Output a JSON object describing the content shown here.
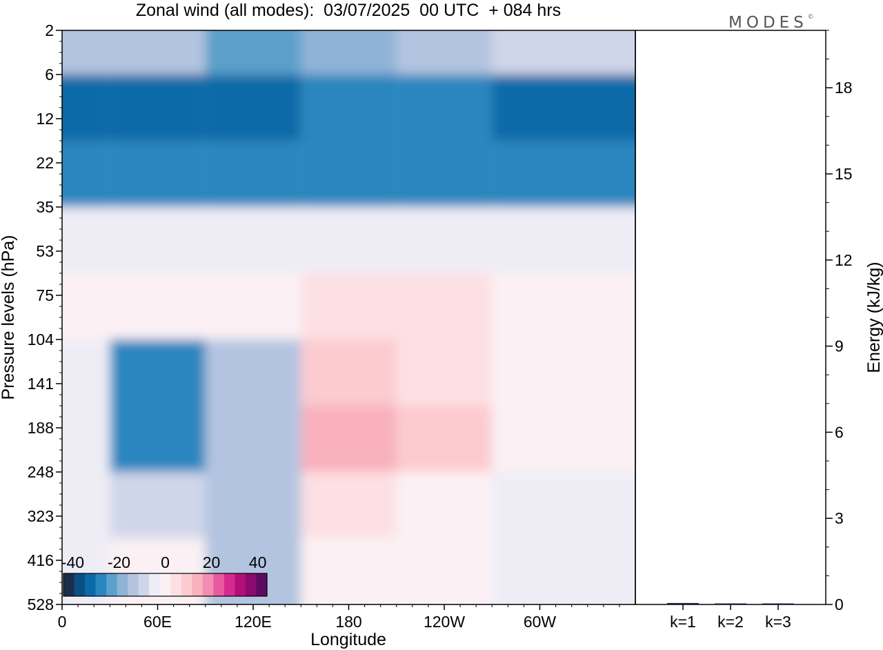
{
  "title": "Zonal wind (all modes):  03/07/2025  00 UTC  + 084 hrs",
  "logo": "MODES",
  "chart_data": [
    {
      "type": "heatmap",
      "xlabel": "Longitude",
      "ylabel": "Pressure levels (hPa)",
      "x_ticks": [
        "0",
        "60E",
        "120E",
        "180",
        "120W",
        "60W"
      ],
      "y_ticks": [
        "2",
        "6",
        "12",
        "22",
        "35",
        "53",
        "75",
        "104",
        "141",
        "188",
        "248",
        "323",
        "416",
        "528"
      ],
      "colorbar": {
        "tick_labels": [
          "-40",
          "-20",
          "0",
          "20",
          "40"
        ],
        "range": [
          -44,
          44
        ],
        "colors": [
          "#1b2d4a",
          "#0b4f82",
          "#0a6aa8",
          "#2a86be",
          "#5ba0cb",
          "#8fb3d6",
          "#b3c4e0",
          "#d0d6e9",
          "#eeedf6",
          "#fbf1f4",
          "#fde0e3",
          "#fccbd0",
          "#f8b1bd",
          "#f28cb0",
          "#e8599f",
          "#d52b8d",
          "#b30f7a",
          "#8a0a6e",
          "#5e0a60"
        ]
      },
      "zonal_wind_samples": [
        {
          "level": "2",
          "longitudes": [
            "0",
            "60E",
            "120E",
            "180",
            "120W",
            "60W"
          ],
          "values": [
            -15,
            -12,
            -22,
            -18,
            -14,
            -10
          ]
        },
        {
          "level": "12",
          "values": [
            -34,
            -34,
            -32,
            -28,
            -26,
            -32
          ]
        },
        {
          "level": "22",
          "values": [
            -30,
            -30,
            -28,
            -26,
            -26,
            -28
          ]
        },
        {
          "level": "53",
          "values": [
            -6,
            -4,
            -4,
            -4,
            -4,
            -6
          ]
        },
        {
          "level": "75",
          "values": [
            -2,
            -2,
            2,
            4,
            4,
            2
          ]
        },
        {
          "level": "141",
          "values": [
            -6,
            -26,
            -16,
            10,
            6,
            -2
          ]
        },
        {
          "level": "188",
          "values": [
            -6,
            -26,
            -14,
            12,
            8,
            -2
          ]
        },
        {
          "level": "323",
          "values": [
            -4,
            -8,
            -14,
            4,
            2,
            -4
          ]
        },
        {
          "level": "416",
          "values": [
            -4,
            -2,
            -12,
            2,
            0,
            -4
          ]
        }
      ]
    },
    {
      "type": "bar",
      "ylabel": "Energy (kJ/kg)",
      "ylim": [
        0,
        20
      ],
      "y_ticks": [
        "0",
        "3",
        "6",
        "9",
        "12",
        "15",
        "18"
      ],
      "categories": [
        "k=1",
        "k=2",
        "k=3"
      ],
      "values": [
        0.05,
        0.02,
        0.02
      ],
      "bar_color": "#1a1a4a"
    }
  ]
}
